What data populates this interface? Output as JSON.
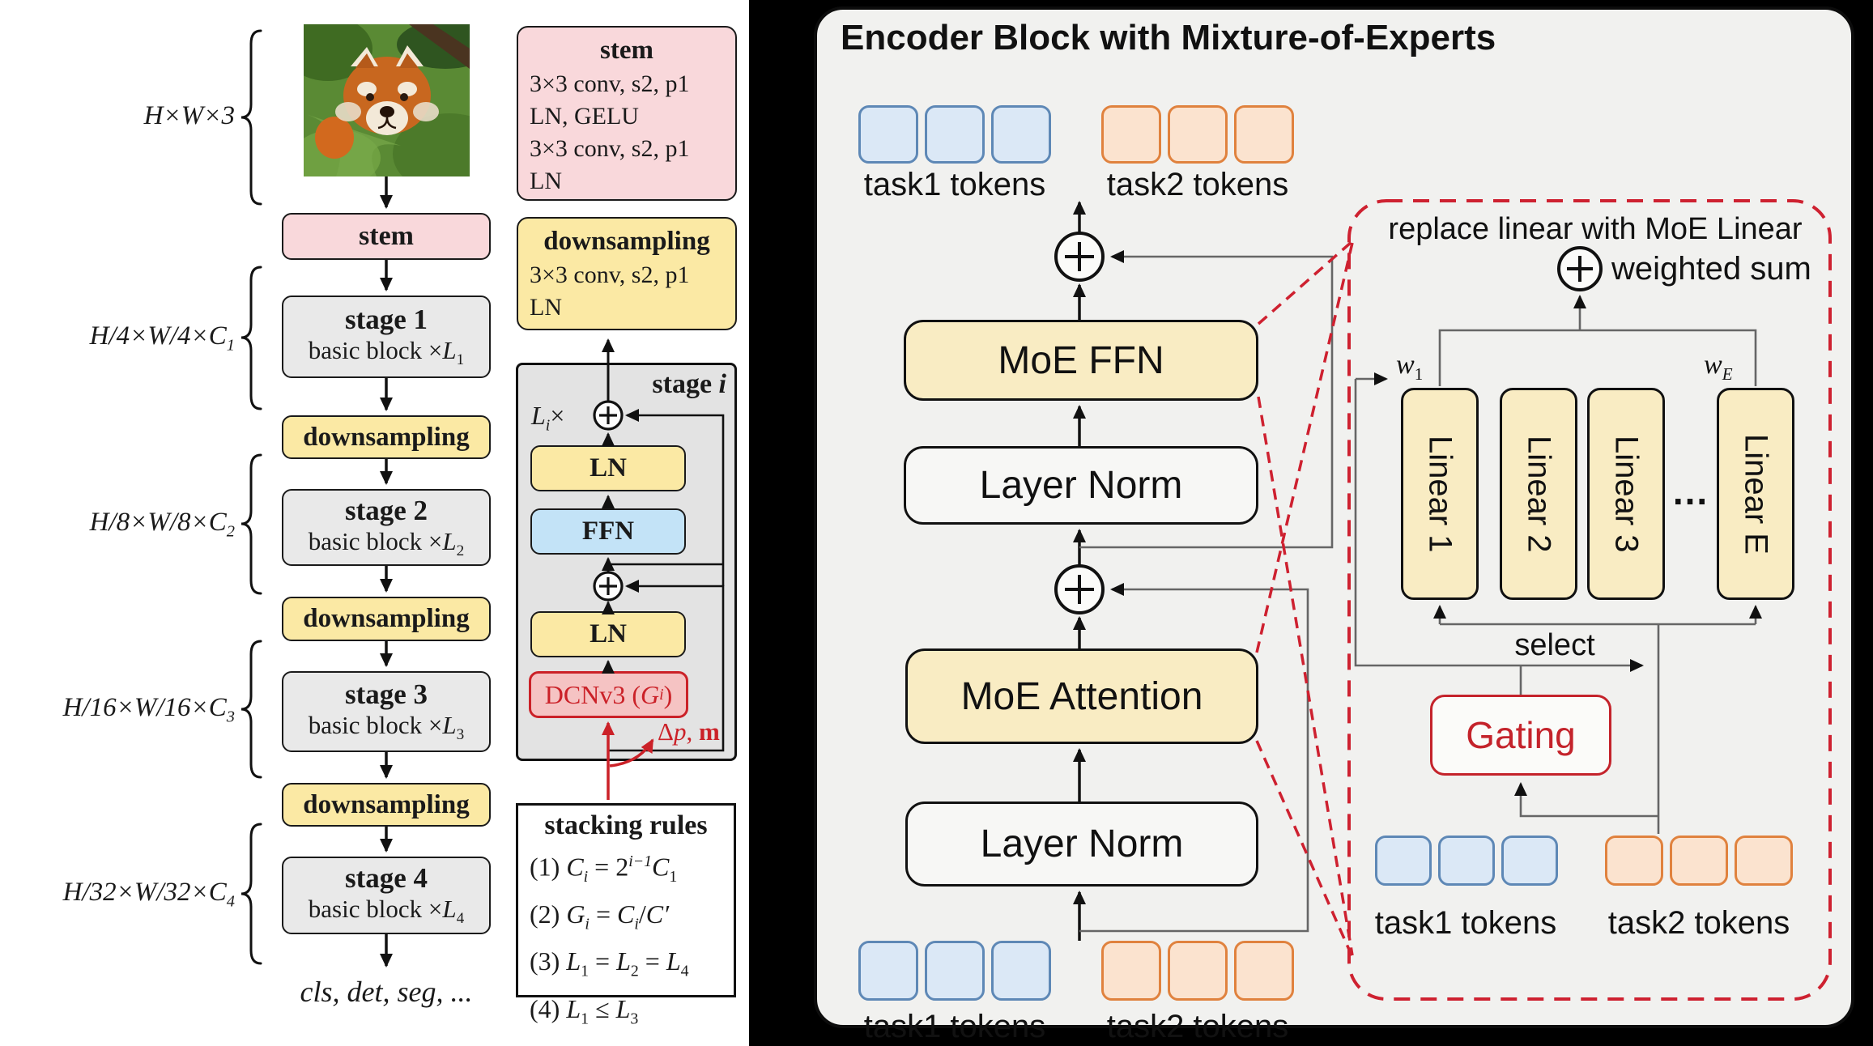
{
  "colors": {
    "background": "#000000",
    "left_panel_bg": "#ffffff",
    "right_panel_bg": "#f1f1ef",
    "stem_pink": "#f9d8db",
    "downsampling_yellow": "#fbe9a4",
    "stage_gray": "#e9e9e9",
    "ffn_blue": "#c3e3f7",
    "dcn_red_fill": "#f5c3c3",
    "accent_red": "#cb2128",
    "moe_yellow": "#f9ecc3",
    "token_blue_border": "#5e88b6",
    "token_orange_border": "#e0823e"
  },
  "left": {
    "dim_labels": [
      {
        "segs": [
          {
            "t": "H×W×3"
          }
        ]
      },
      {
        "segs": [
          {
            "t": "H/4×W/4×C"
          },
          {
            "t": "1",
            "e": "sub"
          }
        ]
      },
      {
        "segs": [
          {
            "t": "H/8×W/8×C"
          },
          {
            "t": "2",
            "e": "sub"
          }
        ]
      },
      {
        "segs": [
          {
            "t": "H/16×W/16×C"
          },
          {
            "t": "3",
            "e": "sub"
          }
        ]
      },
      {
        "segs": [
          {
            "t": "H/32×W/32×C"
          },
          {
            "t": "4",
            "e": "sub"
          }
        ]
      }
    ],
    "flow": {
      "stem": "stem",
      "downsampling": "downsampling",
      "stages": [
        {
          "title": "stage 1",
          "sub": [
            {
              "t": "basic block ×"
            },
            {
              "t": "L",
              "c": "it"
            },
            {
              "t": "1",
              "e": "sub"
            }
          ]
        },
        {
          "title": "stage 2",
          "sub": [
            {
              "t": "basic block ×"
            },
            {
              "t": "L",
              "c": "it"
            },
            {
              "t": "2",
              "e": "sub"
            }
          ]
        },
        {
          "title": "stage 3",
          "sub": [
            {
              "t": "basic block ×"
            },
            {
              "t": "L",
              "c": "it"
            },
            {
              "t": "3",
              "e": "sub"
            }
          ]
        },
        {
          "title": "stage 4",
          "sub": [
            {
              "t": "basic block ×"
            },
            {
              "t": "L",
              "c": "it"
            },
            {
              "t": "4",
              "e": "sub"
            }
          ]
        }
      ],
      "output": "cls, det, seg, ..."
    },
    "stem_detail": {
      "title": "stem",
      "lines": [
        "3×3 conv, s2, p1",
        "LN, GELU",
        "3×3 conv, s2, p1",
        "LN"
      ]
    },
    "down_detail": {
      "title": "downsampling",
      "lines": [
        "3×3 conv, s2, p1",
        "LN"
      ]
    },
    "stage_i": {
      "title": [
        {
          "t": "stage ",
          "c": "bold"
        },
        {
          "t": "i",
          "c": "boldit"
        }
      ],
      "li": [
        {
          "t": "L",
          "c": "it"
        },
        {
          "t": "i",
          "e": "sub",
          "c": "it"
        },
        {
          "t": "×"
        }
      ],
      "ln": "LN",
      "ffn": "FFN",
      "dcn": [
        {
          "t": "DCNv3 ("
        },
        {
          "t": "G",
          "c": "it"
        },
        {
          "t": "i",
          "e": "sub",
          "c": "it"
        },
        {
          "t": ")"
        }
      ],
      "dpm": [
        {
          "t": "Δ"
        },
        {
          "t": "p",
          "c": "it"
        },
        {
          "t": ", "
        },
        {
          "t": "m",
          "c": "bold"
        }
      ]
    },
    "stacking": {
      "title": "stacking rules",
      "rules": [
        [
          {
            "t": "(1) "
          },
          {
            "t": "C",
            "c": "it"
          },
          {
            "t": "i",
            "e": "sub",
            "c": "it"
          },
          {
            "t": " = 2"
          },
          {
            "t": "i−1",
            "e": "sup",
            "c": "it"
          },
          {
            "t": "C",
            "c": "it"
          },
          {
            "t": "1",
            "e": "sub"
          }
        ],
        [
          {
            "t": "(2) "
          },
          {
            "t": "G",
            "c": "it"
          },
          {
            "t": "i",
            "e": "sub",
            "c": "it"
          },
          {
            "t": " = "
          },
          {
            "t": "C",
            "c": "it"
          },
          {
            "t": "i",
            "e": "sub",
            "c": "it"
          },
          {
            "t": "/"
          },
          {
            "t": "C′",
            "c": "it"
          }
        ],
        [
          {
            "t": "(3) "
          },
          {
            "t": "L",
            "c": "it"
          },
          {
            "t": "1",
            "e": "sub"
          },
          {
            "t": " = "
          },
          {
            "t": "L",
            "c": "it"
          },
          {
            "t": "2",
            "e": "sub"
          },
          {
            "t": " = "
          },
          {
            "t": "L",
            "c": "it"
          },
          {
            "t": "4",
            "e": "sub"
          }
        ],
        [
          {
            "t": "(4) "
          },
          {
            "t": "L",
            "c": "it"
          },
          {
            "t": "1",
            "e": "sub"
          },
          {
            "t": " ≤ "
          },
          {
            "t": "L",
            "c": "it"
          },
          {
            "t": "3",
            "e": "sub"
          }
        ]
      ]
    }
  },
  "right": {
    "title": "Encoder Block with Mixture-of-Experts",
    "task1_label": "task1 tokens",
    "task2_label": "task2 tokens",
    "moe_ffn": "MoE FFN",
    "layer_norm": "Layer Norm",
    "moe_attention": "MoE Attention",
    "detail": {
      "caption": "replace linear with MoE Linear",
      "weighted_sum": "weighted sum",
      "w1": [
        {
          "t": "w",
          "c": "it"
        },
        {
          "t": "1",
          "e": "sub"
        }
      ],
      "wE": [
        {
          "t": "w",
          "c": "it"
        },
        {
          "t": "E",
          "e": "sub",
          "c": "it"
        }
      ],
      "experts": [
        "Linear 1",
        "Linear 2",
        "Linear 3",
        "Linear E"
      ],
      "dots": "...",
      "select": "select",
      "gating": "Gating"
    }
  }
}
